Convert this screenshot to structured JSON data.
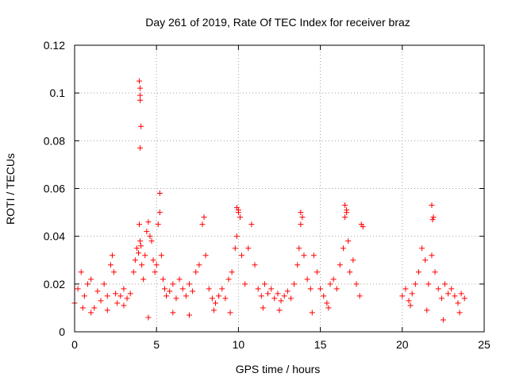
{
  "chart_data": {
    "type": "scatter",
    "title": "Day 261 of 2019, Rate Of TEC Index for receiver braz",
    "xlabel": "GPS time / hours",
    "ylabel": "ROTI / TECUs",
    "xlim": [
      0,
      25
    ],
    "ylim": [
      0,
      0.12
    ],
    "xticks": [
      0,
      5,
      10,
      15,
      20,
      25
    ],
    "xtick_labels": [
      "0",
      "5",
      "10",
      "15",
      "20",
      "25"
    ],
    "yticks": [
      0,
      0.02,
      0.04,
      0.06,
      0.08,
      0.1,
      0.12
    ],
    "ytick_labels": [
      "0",
      "0.02",
      "0.04",
      "0.06",
      "0.08",
      "0.1",
      "0.12"
    ],
    "grid": true,
    "marker": "plus",
    "color": "#ff0000",
    "series": [
      {
        "x": [
          0.0,
          0.2,
          0.4,
          0.6,
          0.8,
          1.0,
          1.2,
          1.4,
          1.6,
          1.8,
          2.0,
          2.2,
          2.3,
          2.4,
          2.5,
          2.6,
          2.8,
          3.0,
          3.2,
          3.4,
          3.6,
          3.7,
          3.8,
          3.9,
          3.95,
          4.0,
          4.05,
          4.1,
          4.2,
          4.3,
          4.4,
          4.5,
          4.6,
          4.7,
          4.8,
          4.9,
          5.0,
          5.1,
          5.2,
          5.3,
          5.4,
          5.5,
          5.6,
          5.8,
          6.0,
          6.2,
          6.4,
          6.6,
          6.8,
          7.0,
          7.2,
          7.4,
          7.6,
          7.8,
          7.9,
          8.0,
          8.2,
          8.4,
          8.6,
          8.8,
          9.0,
          9.2,
          9.4,
          9.6,
          9.8,
          9.9,
          10.0,
          10.1,
          10.2,
          10.4,
          10.6,
          10.8,
          11.0,
          11.2,
          11.4,
          11.6,
          11.8,
          12.0,
          12.2,
          12.4,
          12.6,
          12.8,
          13.0,
          13.2,
          13.4,
          13.6,
          13.7,
          13.8,
          13.9,
          14.0,
          14.2,
          14.4,
          14.6,
          14.8,
          15.0,
          15.2,
          15.4,
          15.6,
          15.8,
          16.0,
          16.2,
          16.4,
          16.5,
          16.6,
          16.7,
          16.8,
          17.0,
          17.2,
          17.4,
          17.6,
          20.0,
          20.2,
          20.4,
          20.6,
          20.8,
          21.0,
          21.2,
          21.4,
          21.6,
          21.8,
          21.9,
          22.0,
          22.2,
          22.4,
          22.6,
          22.8,
          23.0,
          23.2,
          23.4,
          23.6,
          23.8,
          3.95,
          4.0,
          4.0,
          4.0,
          4.05,
          4.0,
          5.2,
          9.9,
          10.0,
          13.8,
          16.5,
          16.6,
          21.8,
          21.85,
          17.5,
          0.5,
          1.0,
          2.0,
          3.0,
          4.5,
          6.0,
          7.0,
          8.5,
          9.5,
          11.5,
          12.5,
          14.5,
          15.5,
          20.5,
          21.5,
          22.5,
          23.5
        ],
        "y": [
          0.012,
          0.018,
          0.025,
          0.015,
          0.02,
          0.022,
          0.01,
          0.017,
          0.013,
          0.02,
          0.015,
          0.028,
          0.032,
          0.025,
          0.016,
          0.012,
          0.015,
          0.018,
          0.014,
          0.016,
          0.025,
          0.03,
          0.035,
          0.033,
          0.045,
          0.038,
          0.036,
          0.028,
          0.022,
          0.032,
          0.042,
          0.046,
          0.04,
          0.038,
          0.03,
          0.025,
          0.028,
          0.045,
          0.05,
          0.032,
          0.022,
          0.018,
          0.015,
          0.017,
          0.02,
          0.014,
          0.022,
          0.018,
          0.015,
          0.02,
          0.017,
          0.025,
          0.028,
          0.045,
          0.048,
          0.032,
          0.018,
          0.014,
          0.012,
          0.015,
          0.018,
          0.014,
          0.022,
          0.025,
          0.035,
          0.04,
          0.05,
          0.048,
          0.032,
          0.02,
          0.035,
          0.045,
          0.028,
          0.018,
          0.015,
          0.02,
          0.016,
          0.018,
          0.014,
          0.016,
          0.013,
          0.015,
          0.017,
          0.014,
          0.02,
          0.028,
          0.035,
          0.045,
          0.048,
          0.032,
          0.022,
          0.018,
          0.032,
          0.025,
          0.018,
          0.015,
          0.012,
          0.02,
          0.022,
          0.018,
          0.028,
          0.035,
          0.048,
          0.05,
          0.038,
          0.025,
          0.03,
          0.02,
          0.015,
          0.044,
          0.015,
          0.018,
          0.013,
          0.016,
          0.02,
          0.025,
          0.035,
          0.03,
          0.02,
          0.032,
          0.048,
          0.025,
          0.018,
          0.014,
          0.02,
          0.016,
          0.018,
          0.015,
          0.012,
          0.016,
          0.014,
          0.105,
          0.102,
          0.099,
          0.097,
          0.086,
          0.077,
          0.058,
          0.052,
          0.051,
          0.05,
          0.053,
          0.051,
          0.053,
          0.047,
          0.045,
          0.01,
          0.008,
          0.009,
          0.011,
          0.006,
          0.008,
          0.007,
          0.009,
          0.008,
          0.01,
          0.009,
          0.008,
          0.01,
          0.011,
          0.009,
          0.005,
          0.008
        ]
      }
    ]
  }
}
